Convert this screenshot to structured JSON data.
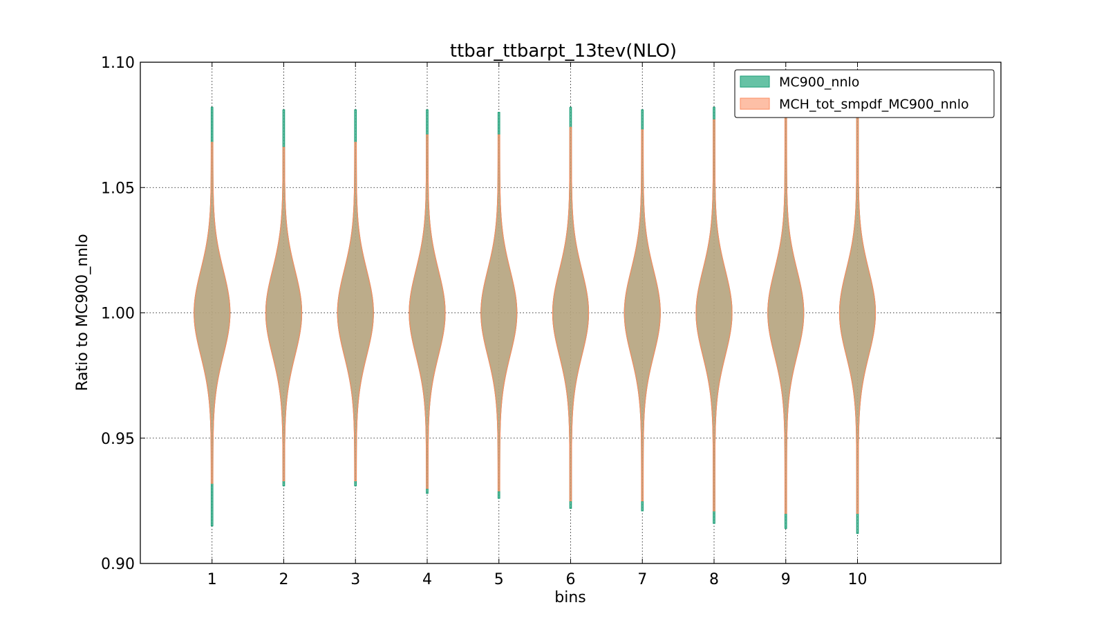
{
  "chart_data": {
    "type": "violin",
    "title": "ttbar_ttbarpt_13tev(NLO)",
    "xlabel": "bins",
    "ylabel": "Ratio to MC900_nnlo",
    "ylim": [
      0.9,
      1.1
    ],
    "xlim": [
      0,
      12
    ],
    "grid": true,
    "legend_position": "top-right",
    "y_ticks": [
      "0.90",
      "0.95",
      "1.00",
      "1.05",
      "1.10"
    ],
    "y_tick_values": [
      0.9,
      0.95,
      1.0,
      1.05,
      1.1
    ],
    "x_ticks": [
      "1",
      "2",
      "3",
      "4",
      "5",
      "6",
      "7",
      "8",
      "9",
      "10"
    ],
    "x_tick_values": [
      1,
      2,
      3,
      4,
      5,
      6,
      7,
      8,
      9,
      10
    ],
    "series": [
      {
        "name": "MC900_nnlo",
        "color": "#66c2a5",
        "edge_color": "#1b9e77",
        "violins": [
          {
            "x": 1,
            "min": 0.915,
            "max": 1.082
          },
          {
            "x": 2,
            "min": 0.931,
            "max": 1.081
          },
          {
            "x": 3,
            "min": 0.931,
            "max": 1.081
          },
          {
            "x": 4,
            "min": 0.928,
            "max": 1.081
          },
          {
            "x": 5,
            "min": 0.926,
            "max": 1.08
          },
          {
            "x": 6,
            "min": 0.922,
            "max": 1.082
          },
          {
            "x": 7,
            "min": 0.921,
            "max": 1.081
          },
          {
            "x": 8,
            "min": 0.916,
            "max": 1.082
          },
          {
            "x": 9,
            "min": 0.914,
            "max": 1.081
          },
          {
            "x": 10,
            "min": 0.912,
            "max": 1.08
          }
        ]
      },
      {
        "name": "MCH_tot_smpdf_MC900_nnlo",
        "color": "#fc8d62",
        "edge_color": "#fc8d62",
        "violins": [
          {
            "x": 1,
            "min": 0.932,
            "max": 1.068
          },
          {
            "x": 2,
            "min": 0.933,
            "max": 1.066
          },
          {
            "x": 3,
            "min": 0.933,
            "max": 1.068
          },
          {
            "x": 4,
            "min": 0.93,
            "max": 1.071
          },
          {
            "x": 5,
            "min": 0.929,
            "max": 1.071
          },
          {
            "x": 6,
            "min": 0.925,
            "max": 1.074
          },
          {
            "x": 7,
            "min": 0.925,
            "max": 1.073
          },
          {
            "x": 8,
            "min": 0.921,
            "max": 1.077
          },
          {
            "x": 9,
            "min": 0.92,
            "max": 1.078
          },
          {
            "x": 10,
            "min": 0.92,
            "max": 1.079
          }
        ]
      }
    ]
  }
}
